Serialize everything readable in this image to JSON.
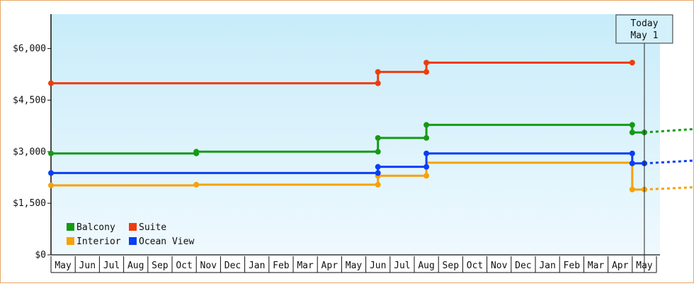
{
  "chart_data": {
    "type": "line",
    "subtype": "step",
    "title": "",
    "xlabel": "",
    "ylabel": "",
    "ylim": [
      0,
      7000
    ],
    "y_ticks": [
      {
        "value": 0,
        "label": "$0"
      },
      {
        "value": 1500,
        "label": "$1,500"
      },
      {
        "value": 3000,
        "label": "$3,000"
      },
      {
        "value": 4500,
        "label": "$4,500"
      },
      {
        "value": 6000,
        "label": "$6,000"
      }
    ],
    "x_categories": [
      "May",
      "Jun",
      "Jul",
      "Aug",
      "Sep",
      "Oct",
      "Nov",
      "Dec",
      "Jan",
      "Feb",
      "Mar",
      "Apr",
      "May",
      "Jun",
      "Jul",
      "Aug",
      "Sep",
      "Oct",
      "Nov",
      "Dec",
      "Jan",
      "Feb",
      "Mar",
      "Apr",
      "May"
    ],
    "today_marker": {
      "line1": "Today",
      "line2": "May 1",
      "index": 24
    },
    "legend_position": "bottom-left",
    "series": [
      {
        "name": "Balcony",
        "color": "#159a15",
        "points": [
          [
            0,
            2950
          ],
          [
            6,
            2950
          ],
          [
            6,
            3000
          ],
          [
            13.5,
            3000
          ],
          [
            13.5,
            3400
          ],
          [
            15.5,
            3400
          ],
          [
            15.5,
            3780
          ],
          [
            24,
            3780
          ],
          [
            24,
            3560
          ],
          [
            24.5,
            3560
          ]
        ],
        "dots": [
          [
            0,
            2950
          ],
          [
            6,
            2950
          ],
          [
            6,
            3000
          ],
          [
            13.5,
            3000
          ],
          [
            13.5,
            3400
          ],
          [
            15.5,
            3400
          ],
          [
            15.5,
            3780
          ],
          [
            24,
            3780
          ],
          [
            24,
            3560
          ],
          [
            24.5,
            3560
          ]
        ],
        "forecast": [
          [
            24.5,
            3560
          ],
          [
            27,
            3680
          ]
        ]
      },
      {
        "name": "Suite",
        "color": "#f03c0c",
        "points": [
          [
            0,
            4990
          ],
          [
            13.5,
            4990
          ],
          [
            13.5,
            5320
          ],
          [
            15.5,
            5320
          ],
          [
            15.5,
            5590
          ],
          [
            24,
            5590
          ]
        ],
        "dots": [
          [
            0,
            4990
          ],
          [
            13.5,
            4990
          ],
          [
            13.5,
            5320
          ],
          [
            15.5,
            5320
          ],
          [
            15.5,
            5590
          ],
          [
            24,
            5590
          ]
        ],
        "forecast": []
      },
      {
        "name": "Interior",
        "color": "#f5a20a",
        "points": [
          [
            0,
            2020
          ],
          [
            6,
            2020
          ],
          [
            6,
            2040
          ],
          [
            13.5,
            2040
          ],
          [
            13.5,
            2300
          ],
          [
            15.5,
            2300
          ],
          [
            15.5,
            2680
          ],
          [
            24,
            2680
          ],
          [
            24,
            1900
          ],
          [
            24.5,
            1900
          ]
        ],
        "dots": [
          [
            0,
            2020
          ],
          [
            6,
            2040
          ],
          [
            13.5,
            2040
          ],
          [
            13.5,
            2300
          ],
          [
            15.5,
            2300
          ],
          [
            24,
            1900
          ],
          [
            24.5,
            1900
          ]
        ],
        "forecast": [
          [
            24.5,
            1900
          ],
          [
            27,
            1980
          ]
        ]
      },
      {
        "name": "Ocean View",
        "color": "#0a3ef5",
        "points": [
          [
            0,
            2380
          ],
          [
            13.5,
            2380
          ],
          [
            13.5,
            2560
          ],
          [
            15.5,
            2560
          ],
          [
            15.5,
            2950
          ],
          [
            24,
            2950
          ],
          [
            24,
            2660
          ],
          [
            24.5,
            2660
          ]
        ],
        "dots": [
          [
            0,
            2380
          ],
          [
            13.5,
            2380
          ],
          [
            13.5,
            2560
          ],
          [
            15.5,
            2560
          ],
          [
            15.5,
            2950
          ],
          [
            24,
            2950
          ],
          [
            24,
            2660
          ],
          [
            24.5,
            2660
          ]
        ],
        "forecast": [
          [
            24.5,
            2660
          ],
          [
            27,
            2760
          ]
        ]
      }
    ]
  }
}
